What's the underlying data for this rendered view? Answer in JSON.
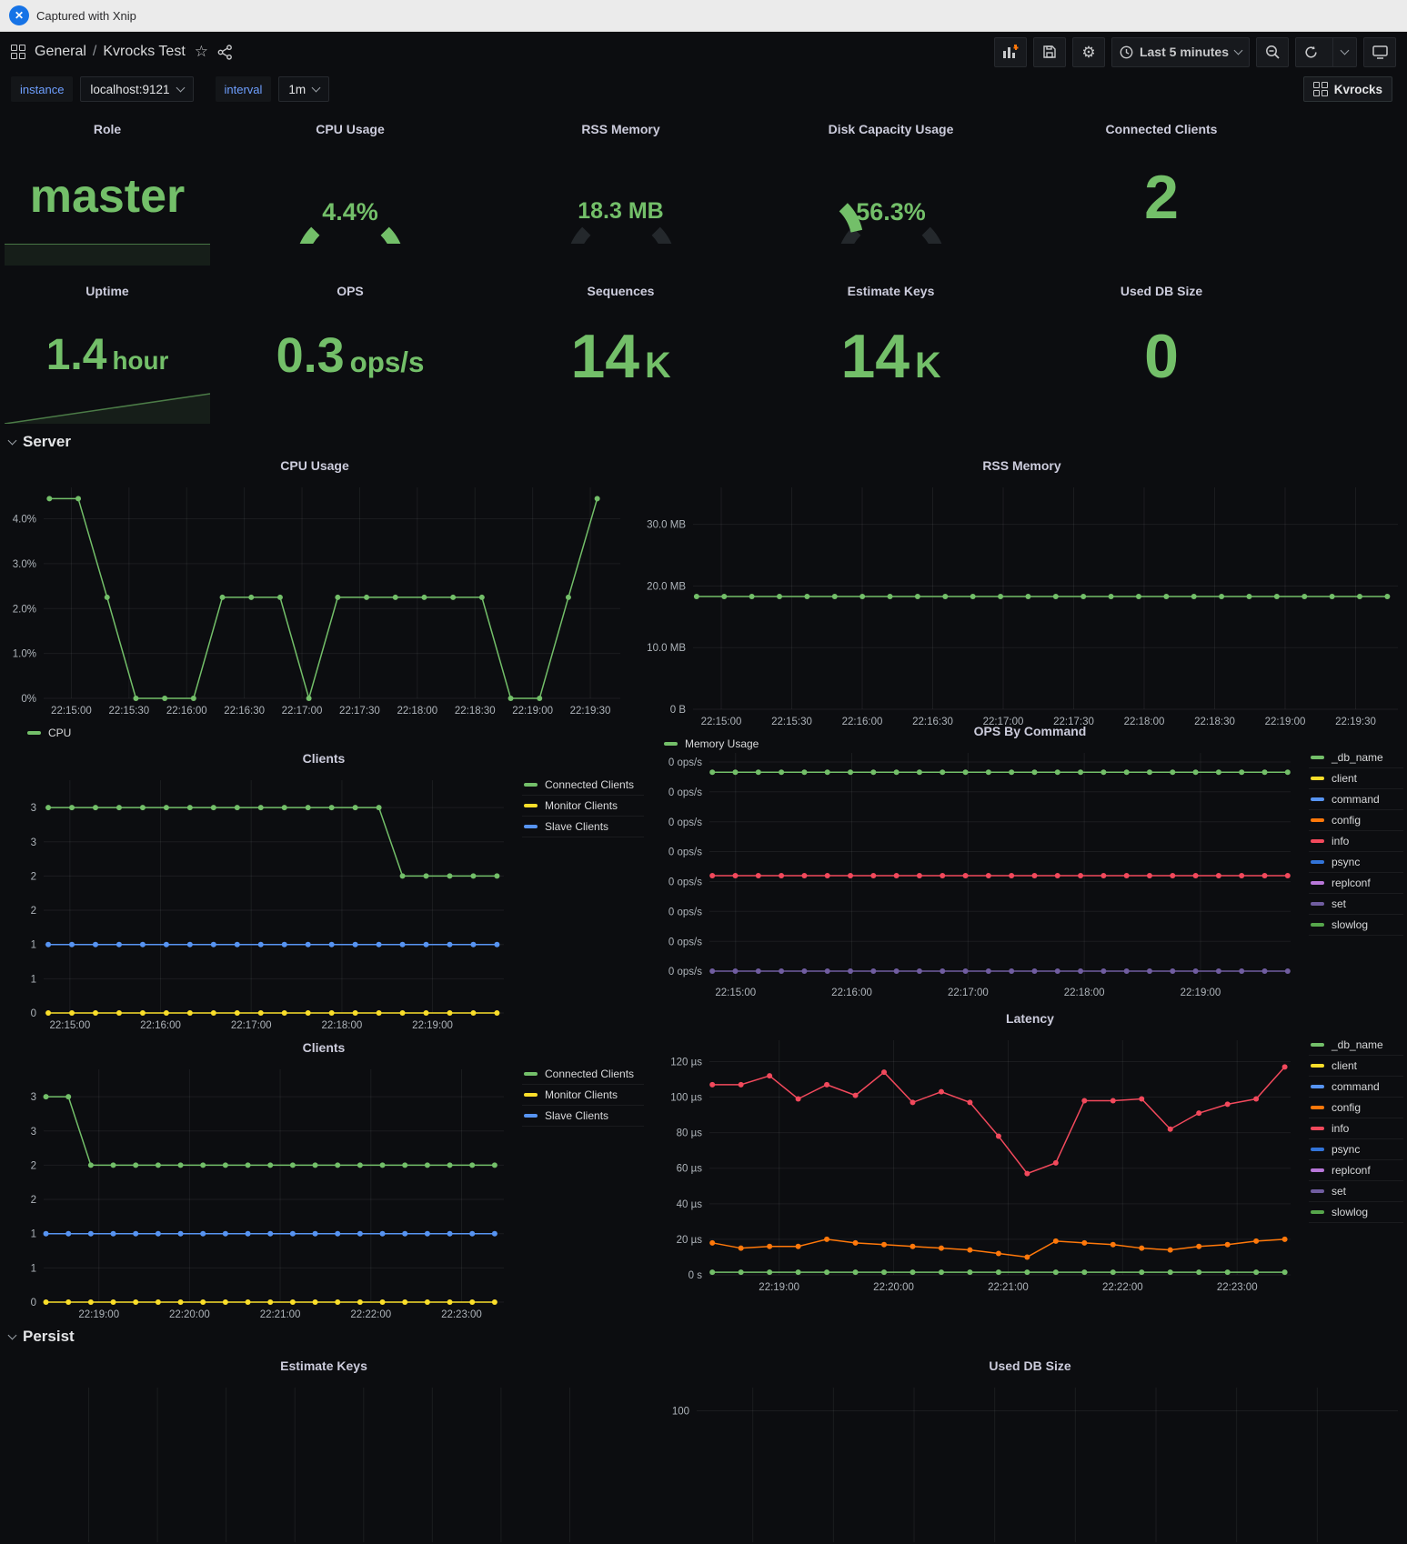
{
  "capture_bar": {
    "label": "Captured with Xnip"
  },
  "navbar": {
    "breadcrumb_section": "General",
    "breadcrumb_sep": "/",
    "dashboard_title": "Kvrocks Test",
    "time_range": "Last 5 minutes"
  },
  "variables": {
    "instance_label": "instance",
    "instance_value": "localhost:9121",
    "interval_label": "interval",
    "interval_value": "1m"
  },
  "kvrocks_button_label": "Kvrocks",
  "sections": {
    "server": "Server",
    "persist": "Persist"
  },
  "colors": {
    "green": "#73BF69",
    "yellow": "#FADE2A",
    "blue": "#5794F2",
    "orange": "#FF780A",
    "red": "#F2495C",
    "dark_blue": "#3274D9",
    "purple": "#B877D9",
    "slate_purple": "#705DA0",
    "dark_green": "#56A64B",
    "accent_blue": "#6e9fff",
    "panel_bg": "#0c0d10"
  },
  "stats": [
    {
      "title": "Role",
      "value": "master",
      "unit": ""
    },
    {
      "title": "CPU Usage",
      "value": "4.4%",
      "unit": ""
    },
    {
      "title": "RSS Memory",
      "value": "18.3 MB",
      "unit": ""
    },
    {
      "title": "Disk Capacity Usage",
      "value": "56.3%",
      "unit": ""
    },
    {
      "title": "Connected Clients",
      "value": "2",
      "unit": ""
    },
    {
      "title": "Uptime",
      "value": "1.4",
      "unit": "hour"
    },
    {
      "title": "OPS",
      "value": "0.3",
      "unit": "ops/s"
    },
    {
      "title": "Sequences",
      "value": "14",
      "unit": "K"
    },
    {
      "title": "Estimate Keys",
      "value": "14",
      "unit": "K"
    },
    {
      "title": "Used DB Size",
      "value": "0",
      "unit": ""
    }
  ],
  "chart_data": [
    {
      "type": "line",
      "title": "CPU Usage",
      "ylabel": "percent",
      "ylim": [
        0,
        4.7
      ],
      "yticks": [
        {
          "label": "0%",
          "v": 0
        },
        {
          "label": "1.0%",
          "v": 1
        },
        {
          "label": "2.0%",
          "v": 2
        },
        {
          "label": "3.0%",
          "v": 3
        },
        {
          "label": "4.0%",
          "v": 4
        }
      ],
      "xticks": [
        "22:15:00",
        "22:15:30",
        "22:16:00",
        "22:16:30",
        "22:17:00",
        "22:17:30",
        "22:18:00",
        "22:18:30",
        "22:19:00",
        "22:19:30"
      ],
      "xtick_f": [
        0.048,
        0.148,
        0.248,
        0.348,
        0.448,
        0.548,
        0.648,
        0.748,
        0.848,
        0.948
      ],
      "legend_position": "bottom",
      "legend": [
        {
          "label": "CPU",
          "color": "#73BF69"
        }
      ],
      "series": [
        {
          "name": "CPU",
          "color": "#73BF69",
          "xf": [
            0.01,
            0.96
          ],
          "values": [
            4.45,
            4.45,
            2.25,
            0,
            0,
            0,
            2.25,
            2.25,
            2.25,
            0,
            2.25,
            2.25,
            2.25,
            2.25,
            2.25,
            2.25,
            0,
            0,
            2.25,
            4.45
          ]
        }
      ]
    },
    {
      "type": "line",
      "title": "RSS Memory",
      "ylabel": "bytes",
      "ylim": [
        0,
        36
      ],
      "yticks": [
        {
          "label": "0 B",
          "v": 0
        },
        {
          "label": "10.0 MB",
          "v": 10
        },
        {
          "label": "20.0 MB",
          "v": 20
        },
        {
          "label": "30.0 MB",
          "v": 30
        }
      ],
      "xticks": [
        "22:15:00",
        "22:15:30",
        "22:16:00",
        "22:16:30",
        "22:17:00",
        "22:17:30",
        "22:18:00",
        "22:18:30",
        "22:19:00",
        "22:19:30"
      ],
      "xtick_f": [
        0.04,
        0.14,
        0.24,
        0.34,
        0.44,
        0.54,
        0.64,
        0.74,
        0.84,
        0.94
      ],
      "legend_position": "bottom",
      "legend": [
        {
          "label": "Memory Usage",
          "color": "#73BF69"
        }
      ],
      "series": [
        {
          "name": "Memory Usage",
          "color": "#73BF69",
          "xf": [
            0.005,
            0.985
          ],
          "values": [
            18.3,
            18.3,
            18.3,
            18.3,
            18.3,
            18.3,
            18.3,
            18.3,
            18.3,
            18.3,
            18.3,
            18.3,
            18.3,
            18.3,
            18.3,
            18.3,
            18.3,
            18.3,
            18.3,
            18.3,
            18.3,
            18.3,
            18.3,
            18.3,
            18.3,
            18.3
          ]
        }
      ]
    },
    {
      "type": "line",
      "title": "Clients",
      "ylim": [
        0,
        3.4
      ],
      "yticks": [
        {
          "label": "0",
          "v": 0
        },
        {
          "label": "1",
          "v": 0.5
        },
        {
          "label": "1",
          "v": 1
        },
        {
          "label": "2",
          "v": 1.5
        },
        {
          "label": "2",
          "v": 2
        },
        {
          "label": "3",
          "v": 2.5
        },
        {
          "label": "3",
          "v": 3
        }
      ],
      "xticks": [
        "22:15:00",
        "22:16:00",
        "22:17:00",
        "22:18:00",
        "22:19:00"
      ],
      "xtick_f": [
        0.057,
        0.254,
        0.451,
        0.648,
        0.845
      ],
      "legend_position": "right",
      "legend": [
        {
          "label": "Connected Clients",
          "color": "#73BF69"
        },
        {
          "label": "Monitor Clients",
          "color": "#FADE2A"
        },
        {
          "label": "Slave Clients",
          "color": "#5794F2"
        }
      ],
      "series": [
        {
          "name": "Connected Clients",
          "color": "#73BF69",
          "xf": [
            0.01,
            0.985
          ],
          "values": [
            3,
            3,
            3,
            3,
            3,
            3,
            3,
            3,
            3,
            3,
            3,
            3,
            3,
            3,
            3,
            2,
            2,
            2,
            2,
            2
          ]
        },
        {
          "name": "Slave Clients",
          "color": "#5794F2",
          "xf": [
            0.01,
            0.985
          ],
          "values": [
            1,
            1,
            1,
            1,
            1,
            1,
            1,
            1,
            1,
            1,
            1,
            1,
            1,
            1,
            1,
            1,
            1,
            1,
            1,
            1
          ]
        },
        {
          "name": "Monitor Clients",
          "color": "#FADE2A",
          "xf": [
            0.01,
            0.985
          ],
          "values": [
            0,
            0,
            0,
            0,
            0,
            0,
            0,
            0,
            0,
            0,
            0,
            0,
            0,
            0,
            0,
            0,
            0,
            0,
            0,
            0
          ]
        }
      ]
    },
    {
      "type": "line",
      "title": "OPS By Command",
      "ylabel": "ops/s",
      "note_all_values": "all plotted series read 0 ops/s on axis",
      "ylim": [
        0,
        1
      ],
      "yticks": [
        {
          "label": "0 ops/s",
          "v": 0.04
        },
        {
          "label": "0 ops/s",
          "v": 0.171
        },
        {
          "label": "0 ops/s",
          "v": 0.303
        },
        {
          "label": "0 ops/s",
          "v": 0.434
        },
        {
          "label": "0 ops/s",
          "v": 0.566
        },
        {
          "label": "0 ops/s",
          "v": 0.697
        },
        {
          "label": "0 ops/s",
          "v": 0.829
        },
        {
          "label": "0 ops/s",
          "v": 0.96
        }
      ],
      "xticks": [
        "22:15:00",
        "22:16:00",
        "22:17:00",
        "22:18:00",
        "22:19:00"
      ],
      "xtick_f": [
        0.045,
        0.245,
        0.445,
        0.645,
        0.845
      ],
      "legend_position": "right",
      "legend": [
        {
          "label": "_db_name",
          "color": "#73BF69"
        },
        {
          "label": "client",
          "color": "#FADE2A"
        },
        {
          "label": "command",
          "color": "#5794F2"
        },
        {
          "label": "config",
          "color": "#FF780A"
        },
        {
          "label": "info",
          "color": "#F2495C"
        },
        {
          "label": "psync",
          "color": "#3274D9"
        },
        {
          "label": "replconf",
          "color": "#B877D9"
        },
        {
          "label": "set",
          "color": "#705DA0"
        },
        {
          "label": "slowlog",
          "color": "#56A64B"
        }
      ],
      "series": [
        {
          "name": "_db_name",
          "color": "#73BF69",
          "xf": [
            0.005,
            0.995
          ],
          "values": [
            0.915,
            0.915,
            0.915,
            0.915,
            0.915,
            0.915,
            0.915,
            0.915,
            0.915,
            0.915,
            0.915,
            0.915,
            0.915,
            0.915,
            0.915,
            0.915,
            0.915,
            0.915,
            0.915,
            0.915,
            0.915,
            0.915,
            0.915,
            0.915,
            0.915,
            0.915
          ]
        },
        {
          "name": "info",
          "color": "#F2495C",
          "xf": [
            0.005,
            0.995
          ],
          "values": [
            0.46,
            0.46,
            0.46,
            0.46,
            0.46,
            0.46,
            0.46,
            0.46,
            0.46,
            0.46,
            0.46,
            0.46,
            0.46,
            0.46,
            0.46,
            0.46,
            0.46,
            0.46,
            0.46,
            0.46,
            0.46,
            0.46,
            0.46,
            0.46,
            0.46,
            0.46
          ]
        },
        {
          "name": "set",
          "color": "#705DA0",
          "xf": [
            0.005,
            0.995
          ],
          "values": [
            0.04,
            0.04,
            0.04,
            0.04,
            0.04,
            0.04,
            0.04,
            0.04,
            0.04,
            0.04,
            0.04,
            0.04,
            0.04,
            0.04,
            0.04,
            0.04,
            0.04,
            0.04,
            0.04,
            0.04,
            0.04,
            0.04,
            0.04,
            0.04,
            0.04,
            0.04
          ]
        }
      ]
    },
    {
      "type": "line",
      "title": "Clients",
      "ylim": [
        0,
        3.4
      ],
      "yticks": [
        {
          "label": "0",
          "v": 0
        },
        {
          "label": "1",
          "v": 0.5
        },
        {
          "label": "1",
          "v": 1
        },
        {
          "label": "2",
          "v": 1.5
        },
        {
          "label": "2",
          "v": 2
        },
        {
          "label": "3",
          "v": 2.5
        },
        {
          "label": "3",
          "v": 3
        }
      ],
      "xticks": [
        "22:19:00",
        "22:20:00",
        "22:21:00",
        "22:22:00",
        "22:23:00"
      ],
      "xtick_f": [
        0.12,
        0.317,
        0.514,
        0.711,
        0.908
      ],
      "legend_position": "right",
      "legend": [
        {
          "label": "Connected Clients",
          "color": "#73BF69"
        },
        {
          "label": "Monitor Clients",
          "color": "#FADE2A"
        },
        {
          "label": "Slave Clients",
          "color": "#5794F2"
        }
      ],
      "series": [
        {
          "name": "Connected Clients",
          "color": "#73BF69",
          "xf": [
            0.005,
            0.98
          ],
          "values": [
            3,
            3,
            2,
            2,
            2,
            2,
            2,
            2,
            2,
            2,
            2,
            2,
            2,
            2,
            2,
            2,
            2,
            2,
            2,
            2,
            2
          ]
        },
        {
          "name": "Slave Clients",
          "color": "#5794F2",
          "xf": [
            0.005,
            0.98
          ],
          "values": [
            1,
            1,
            1,
            1,
            1,
            1,
            1,
            1,
            1,
            1,
            1,
            1,
            1,
            1,
            1,
            1,
            1,
            1,
            1,
            1,
            1
          ]
        },
        {
          "name": "Monitor Clients",
          "color": "#FADE2A",
          "xf": [
            0.005,
            0.98
          ],
          "values": [
            0,
            0,
            0,
            0,
            0,
            0,
            0,
            0,
            0,
            0,
            0,
            0,
            0,
            0,
            0,
            0,
            0,
            0,
            0,
            0,
            0
          ]
        }
      ]
    },
    {
      "type": "line",
      "title": "Latency",
      "ylabel": "microseconds",
      "ylim": [
        0,
        132
      ],
      "yticks": [
        {
          "label": "0 s",
          "v": 0
        },
        {
          "label": "20 µs",
          "v": 20
        },
        {
          "label": "40 µs",
          "v": 40
        },
        {
          "label": "60 µs",
          "v": 60
        },
        {
          "label": "80 µs",
          "v": 80
        },
        {
          "label": "100 µs",
          "v": 100
        },
        {
          "label": "120 µs",
          "v": 120
        }
      ],
      "xticks": [
        "22:19:00",
        "22:20:00",
        "22:21:00",
        "22:22:00",
        "22:23:00"
      ],
      "xtick_f": [
        0.12,
        0.317,
        0.514,
        0.711,
        0.908
      ],
      "legend_position": "right",
      "legend": [
        {
          "label": "_db_name",
          "color": "#73BF69"
        },
        {
          "label": "client",
          "color": "#FADE2A"
        },
        {
          "label": "command",
          "color": "#5794F2"
        },
        {
          "label": "config",
          "color": "#FF780A"
        },
        {
          "label": "info",
          "color": "#F2495C"
        },
        {
          "label": "psync",
          "color": "#3274D9"
        },
        {
          "label": "replconf",
          "color": "#B877D9"
        },
        {
          "label": "set",
          "color": "#705DA0"
        },
        {
          "label": "slowlog",
          "color": "#56A64B"
        }
      ],
      "series": [
        {
          "name": "info",
          "color": "#F2495C",
          "xf": [
            0.005,
            0.99
          ],
          "values": [
            107,
            107,
            112,
            99,
            107,
            101,
            114,
            97,
            103,
            97,
            78,
            57,
            63,
            98,
            98,
            99,
            82,
            91,
            96,
            99,
            117
          ]
        },
        {
          "name": "config",
          "color": "#FF780A",
          "xf": [
            0.005,
            0.99
          ],
          "values": [
            18,
            15,
            16,
            16,
            20,
            18,
            17,
            16,
            15,
            14,
            12,
            10,
            19,
            18,
            17,
            15,
            14,
            16,
            17,
            19,
            20
          ]
        },
        {
          "name": "_db_name",
          "color": "#73BF69",
          "xf": [
            0.005,
            0.99
          ],
          "values": [
            1.5,
            1.5,
            1.5,
            1.5,
            1.5,
            1.5,
            1.5,
            1.5,
            1.5,
            1.5,
            1.5,
            1.5,
            1.5,
            1.5,
            1.5,
            1.5,
            1.5,
            1.5,
            1.5,
            1.5,
            1.5
          ]
        }
      ]
    },
    {
      "type": "line",
      "title": "Estimate Keys",
      "partial": true,
      "ylim": [
        0,
        1
      ],
      "yticks": [],
      "xticks": [],
      "xgrid_f": [
        0.08,
        0.195,
        0.31,
        0.425,
        0.54,
        0.655,
        0.77,
        0.885
      ],
      "series": []
    },
    {
      "type": "line",
      "title": "Used DB Size",
      "partial": true,
      "ylim": [
        0,
        1
      ],
      "yticks": [
        {
          "label": "100",
          "v": 0.85
        }
      ],
      "xticks": [],
      "xgrid_f": [
        0.08,
        0.195,
        0.31,
        0.425,
        0.54,
        0.655,
        0.77,
        0.885
      ],
      "series": []
    }
  ]
}
